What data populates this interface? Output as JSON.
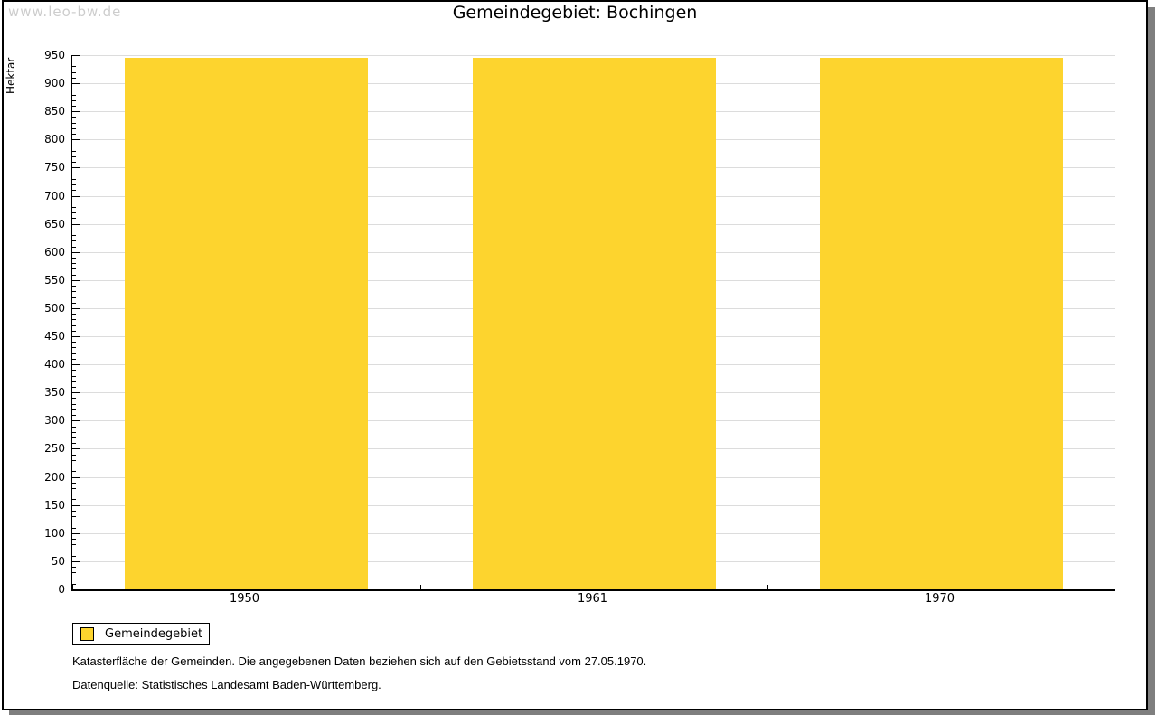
{
  "watermark": "www.leo-bw.de",
  "title": "Gemeindegebiet: Bochingen",
  "chart_data": {
    "type": "bar",
    "title": "Gemeindegebiet: Bochingen",
    "categories": [
      "1950",
      "1961",
      "1970"
    ],
    "series": [
      {
        "name": "Gemeindegebiet",
        "values": [
          946,
          946,
          946
        ]
      }
    ],
    "xlabel": "",
    "ylabel": "Hektar",
    "ylim": [
      0,
      950
    ],
    "y_major_step": 50,
    "y_minor_step": 10,
    "grid": true,
    "legend_position": "bottom-left",
    "bar_color": "#fdd42e"
  },
  "legend": {
    "items": [
      {
        "label": "Gemeindegebiet",
        "color": "#fdd42e",
        "swatch_border": "#000000"
      }
    ]
  },
  "footnotes": [
    "Katasterfläche der Gemeinden. Die angegebenen Daten beziehen sich auf den Gebietsstand vom 27.05.1970.",
    "Datenquelle: Statistisches Landesamt Baden-Württemberg."
  ],
  "colors": {
    "bar": "#fdd42e",
    "gridline": "#dcdcdc",
    "axis": "#000000",
    "frame_border": "#000000",
    "frame_shadow": "#7f7f7f",
    "watermark": "#cdcdcd",
    "background": "#ffffff"
  }
}
